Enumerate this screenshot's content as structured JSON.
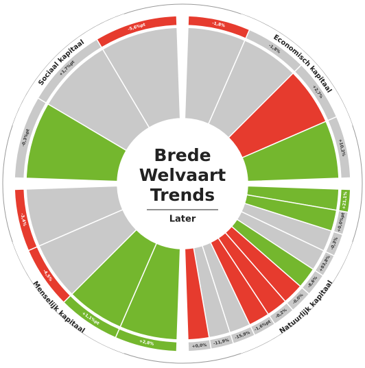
{
  "center": {
    "title_lines": [
      "Brede",
      "Welvaart",
      "Trends"
    ],
    "subtitle": "Later"
  },
  "colors": {
    "red": "#e63b2e",
    "green": "#74b72e",
    "gray": "#c9c9c9"
  },
  "sections": [
    {
      "name": "Economisch kapitaal",
      "items": [
        {
          "label": "-1,8%",
          "color": "gray",
          "band": "red"
        },
        {
          "label": "-1,8%",
          "color": "gray",
          "band": "gray"
        },
        {
          "label": "+2,7%",
          "color": "red",
          "band": "gray"
        },
        {
          "label": "+10,2%",
          "color": "green",
          "band": "gray"
        }
      ]
    },
    {
      "name": "Natuurlijk kapitaal",
      "items": [
        {
          "label": "+21,1%",
          "color": "green",
          "band": "green"
        },
        {
          "label": "+0,0%pt",
          "color": "green",
          "band": "gray"
        },
        {
          "label": "-0,3%",
          "color": "gray",
          "band": "gray"
        },
        {
          "label": "+83,8%",
          "color": "gray",
          "band": "gray"
        },
        {
          "label": "-8,6%",
          "color": "green",
          "band": "gray"
        },
        {
          "label": "-0,0%",
          "color": "red",
          "band": "gray"
        },
        {
          "label": "-0,2%",
          "color": "red",
          "band": "gray"
        },
        {
          "label": "-1,6%pt",
          "color": "red",
          "band": "gray"
        },
        {
          "label": "-15,9%",
          "color": "gray",
          "band": "gray"
        },
        {
          "label": "-11,9%",
          "color": "gray",
          "band": "gray"
        },
        {
          "label": "+0,0%",
          "color": "red",
          "band": "gray"
        }
      ]
    },
    {
      "name": "Menselijk kapitaal",
      "items": [
        {
          "label": "+2,8%",
          "color": "green",
          "band": "green"
        },
        {
          "label": "+1,1%pt",
          "color": "green",
          "band": "green"
        },
        {
          "label": "-4,5%",
          "color": "gray",
          "band": "red"
        },
        {
          "label": "-3,4%",
          "color": "gray",
          "band": "red"
        }
      ]
    },
    {
      "name": "Sociaal kapitaal",
      "items": [
        {
          "label": "-0,3%pt",
          "color": "green",
          "band": "gray"
        },
        {
          "label": "+1,7%pt",
          "color": "gray",
          "band": "gray"
        },
        {
          "label": "-5,6%pt",
          "color": "gray",
          "band": "red"
        }
      ]
    }
  ]
}
